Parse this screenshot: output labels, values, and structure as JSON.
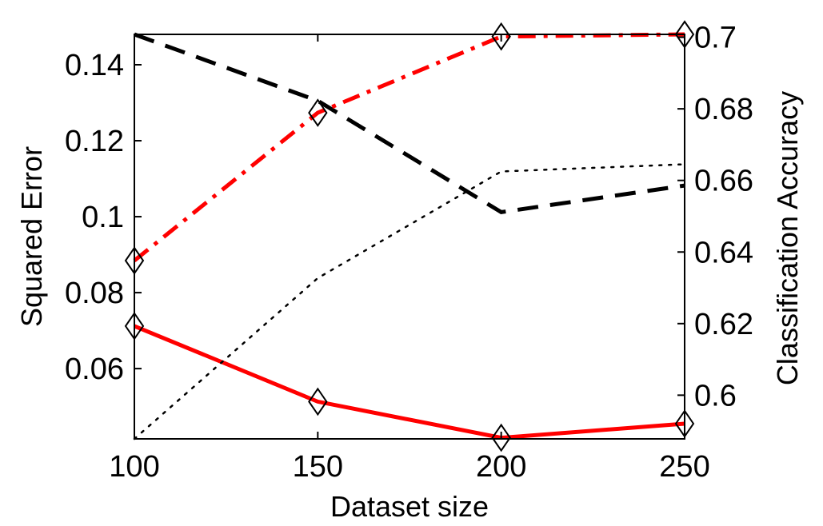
{
  "chart_data": {
    "type": "line",
    "xlabel": "Dataset size",
    "ylabel_left": "Squared Error",
    "ylabel_right": "Classification Accuracy",
    "x": [
      100,
      150,
      200,
      250
    ],
    "xlim": [
      100,
      250
    ],
    "ylim_left": [
      0.0415,
      0.148
    ],
    "ylim_right": [
      0.5878,
      0.7008
    ],
    "x_ticks": [
      "100",
      "150",
      "200",
      "250"
    ],
    "y_ticks_left": [
      "0.06",
      "0.08",
      "0.1",
      "0.12",
      "0.14"
    ],
    "y_ticks_right": [
      "0.6",
      "0.62",
      "0.64",
      "0.66",
      "0.68",
      "0.7"
    ],
    "grid": false,
    "series": [
      {
        "axis": "left",
        "style": "solid",
        "color": "#ff0000",
        "markers": true,
        "values": [
          0.0712,
          0.0513,
          0.0418,
          0.0455
        ]
      },
      {
        "axis": "left",
        "style": "dashed",
        "color": "#000000",
        "markers": false,
        "values": [
          0.148,
          0.1305,
          0.1012,
          0.1082
        ]
      },
      {
        "axis": "right",
        "style": "dashdot",
        "color": "#ff0000",
        "markers": true,
        "values": [
          0.6376,
          0.6789,
          0.7002,
          0.7008
        ]
      },
      {
        "axis": "right",
        "style": "dotted",
        "color": "#000000",
        "markers": false,
        "values": [
          0.5878,
          0.6327,
          0.6625,
          0.6645
        ]
      }
    ]
  }
}
